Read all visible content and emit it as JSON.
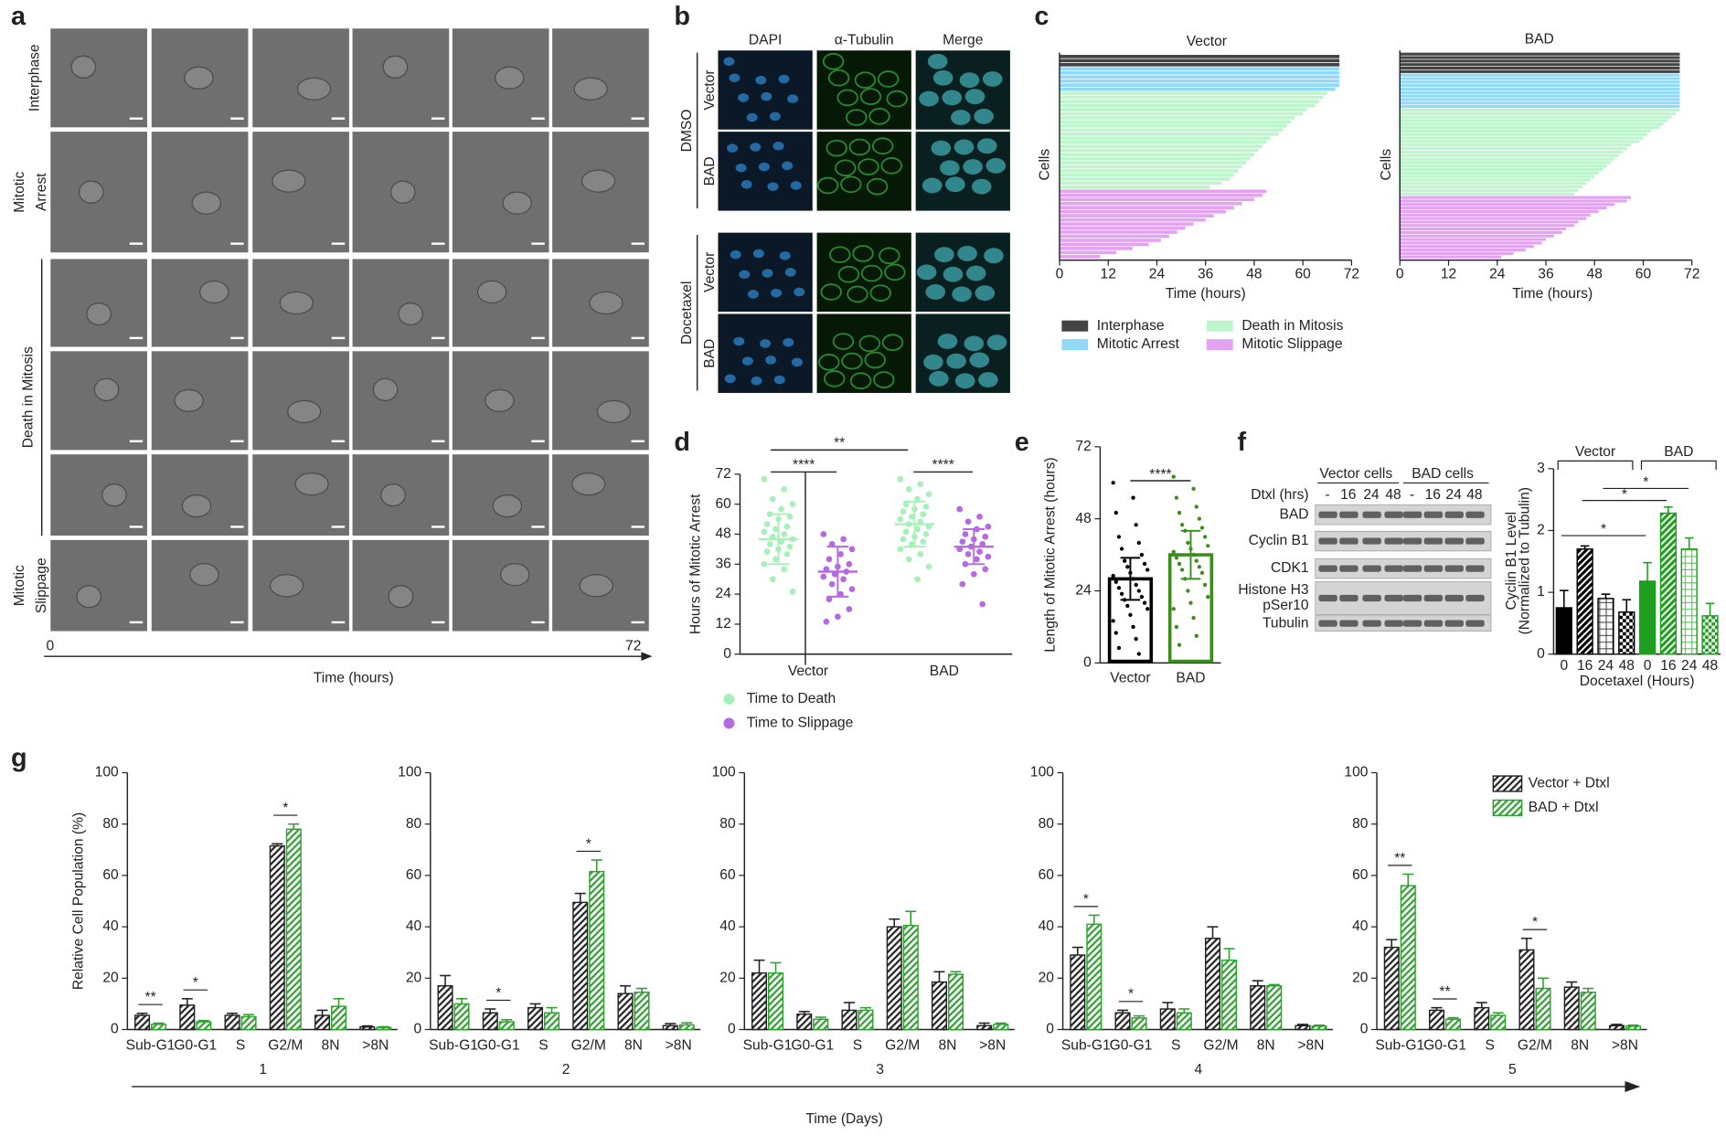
{
  "panel_labels": [
    "a",
    "b",
    "c",
    "d",
    "e",
    "f",
    "g"
  ],
  "panel_a": {
    "rows": [
      [
        "Interphase"
      ],
      [
        "Mitotic",
        "Arrest"
      ],
      [
        "Death in Mitosis"
      ],
      [
        "Mitotic",
        "Slippage"
      ]
    ],
    "time_start": "0",
    "time_end": "72",
    "time_label": "Time (hours)"
  },
  "panel_b": {
    "columns": [
      "DAPI",
      "α-Tubulin",
      "Merge"
    ],
    "treatments": [
      "DMSO",
      "Docetaxel"
    ],
    "cell_lines": [
      "Vector",
      "BAD"
    ]
  },
  "panel_f_blot": {
    "groups": [
      "Vector cells",
      "BAD cells"
    ],
    "lane_header": "Dtxl (hrs)",
    "lanes": [
      "-",
      "16",
      "24",
      "48",
      "-",
      "16",
      "24",
      "48"
    ],
    "proteins": [
      [
        "BAD"
      ],
      [
        "Cyclin B1"
      ],
      [
        "CDK1"
      ],
      [
        "Histone H3",
        "pSer10"
      ],
      [
        "Tubulin"
      ]
    ]
  },
  "chart_data": [
    {
      "type": "timeline",
      "title": "Vector",
      "ylabel": "Cells",
      "xlabel": "Time (hours)",
      "xlim": [
        0,
        72
      ],
      "xticks": [
        0,
        12,
        24,
        36,
        48,
        60,
        72
      ],
      "legend": "bottom",
      "series": [
        {
          "name": "Interphase",
          "color": "#444444",
          "values": [
            69,
            69,
            69
          ]
        },
        {
          "name": "Mitotic Arrest",
          "color": "#92d9f7",
          "values": [
            69,
            69,
            69,
            69,
            69,
            68
          ]
        },
        {
          "name": "Death in Mitosis",
          "color": "#bdf5cc",
          "values": [
            66,
            65,
            64,
            63,
            61,
            60,
            58,
            57,
            56,
            55,
            54,
            52,
            51,
            50,
            49,
            48,
            47,
            46,
            45,
            44,
            43,
            42,
            40,
            37
          ]
        },
        {
          "name": "Mitotic Slippage",
          "color": "#e3a3f2",
          "values": [
            51,
            50,
            48,
            45,
            43,
            41,
            38,
            36,
            33,
            31,
            29,
            27,
            25,
            22,
            18,
            14,
            10
          ]
        }
      ]
    },
    {
      "type": "timeline",
      "title": "BAD",
      "ylabel": "Cells",
      "xlabel": "Time (hours)",
      "xlim": [
        0,
        72
      ],
      "xticks": [
        0,
        12,
        24,
        36,
        48,
        60,
        72
      ],
      "series": [
        {
          "color": "#444444",
          "values": [
            69,
            69,
            69,
            69,
            69,
            69
          ]
        },
        {
          "color": "#92d9f7",
          "values": [
            69,
            69,
            69,
            69,
            69,
            69,
            69,
            69,
            69,
            69
          ]
        },
        {
          "color": "#bdf5cc",
          "values": [
            69,
            68,
            67,
            66,
            65,
            64,
            62,
            61,
            60,
            59,
            57,
            56,
            55,
            54,
            53,
            52,
            51,
            50,
            49,
            48,
            47,
            46,
            45,
            44,
            43
          ]
        },
        {
          "color": "#e3a3f2",
          "values": [
            57,
            56,
            53,
            51,
            49,
            47,
            46,
            44,
            43,
            41,
            40,
            38,
            36,
            35,
            33,
            31,
            28,
            25
          ]
        }
      ]
    },
    {
      "type": "dotplot",
      "ylabel": "Hours of Mitotic Arrest",
      "ylim": [
        0,
        72
      ],
      "yticks": [
        0,
        12,
        24,
        36,
        48,
        60,
        72
      ],
      "categories": [
        "Vector",
        "BAD"
      ],
      "series": [
        {
          "name": "Time to Death",
          "color": "#a8efb9",
          "values": [
            [
              70,
              66,
              62,
              60,
              58,
              56,
              55,
              54,
              52,
              51,
              50,
              49,
              48,
              47,
              46,
              45,
              44,
              43,
              42,
              41,
              40,
              38,
              36,
              34,
              30,
              25
            ],
            [
              70,
              68,
              66,
              64,
              62,
              60,
              59,
              58,
              57,
              56,
              55,
              54,
              53,
              52,
              51,
              50,
              49,
              48,
              47,
              46,
              45,
              44,
              42,
              40,
              38,
              35,
              30
            ]
          ],
          "mean": [
            46,
            52
          ],
          "sd": [
            10,
            9
          ]
        },
        {
          "name": "Time to Slippage",
          "color": "#b56be0",
          "values": [
            [
              48,
              46,
              44,
              42,
              40,
              38,
              36,
              35,
              34,
              33,
              32,
              31,
              30,
              28,
              26,
              24,
              22,
              18,
              15,
              13
            ],
            [
              58,
              55,
              53,
              51,
              50,
              48,
              47,
              46,
              45,
              44,
              43,
              42,
              41,
              40,
              39,
              38,
              36,
              34,
              32,
              28,
              20
            ]
          ],
          "mean": [
            33,
            43
          ],
          "sd": [
            10,
            7
          ]
        }
      ],
      "annotations": [
        "****",
        "****",
        "**"
      ]
    },
    {
      "type": "bar_dots",
      "ylabel": "Length of Mitotic Arrest (hours)",
      "ylim": [
        0,
        72
      ],
      "yticks": [
        0,
        24,
        48,
        72
      ],
      "categories": [
        "Vector",
        "BAD"
      ],
      "colors": [
        "#000000",
        "#3c8c1e"
      ],
      "values": [
        28,
        36
      ],
      "errors": [
        7,
        8
      ],
      "points": [
        [
          60,
          55,
          50,
          46,
          42,
          40,
          38,
          36,
          34,
          33,
          32,
          31,
          30,
          29,
          28,
          27,
          26,
          25,
          24,
          23,
          22,
          21,
          20,
          19,
          18,
          16,
          14,
          12,
          10,
          8,
          5,
          3
        ],
        [
          62,
          58,
          55,
          52,
          50,
          48,
          46,
          45,
          44,
          42,
          40,
          39,
          38,
          37,
          36,
          35,
          34,
          33,
          32,
          31,
          30,
          28,
          26,
          24,
          22,
          20,
          18,
          15,
          12,
          9,
          6
        ]
      ],
      "annotations": [
        "****"
      ]
    },
    {
      "type": "bar_patterns",
      "ylabel": [
        "Cyclin B1 Level",
        "(Normalized to Tubulin)"
      ],
      "xlabel": "Docetaxel (Hours)",
      "groups": [
        "Vector",
        "BAD"
      ],
      "ylim": [
        0,
        3
      ],
      "yticks": [
        0,
        1,
        2,
        3
      ],
      "categories": [
        "0",
        "16",
        "24",
        "48",
        "0",
        "16",
        "24",
        "48"
      ],
      "values": [
        0.75,
        1.7,
        0.9,
        0.68,
        1.18,
        2.28,
        1.7,
        0.62
      ],
      "errors": [
        0.28,
        0.05,
        0.07,
        0.2,
        0.3,
        0.1,
        0.18,
        0.2
      ],
      "colors": [
        "#000000",
        "#000000",
        "#000000",
        "#000000",
        "#1e9e1e",
        "#1e9e1e",
        "#1e9e1e",
        "#1e9e1e"
      ],
      "patterns": [
        "solid",
        "dense",
        "grid",
        "checker",
        "solid",
        "dense",
        "grid",
        "checker"
      ],
      "annotations": [
        "*",
        "*",
        "*"
      ]
    },
    {
      "type": "grouped_bar_days",
      "ylabel": "Relative Cell Population (%)",
      "xlabel": "Time (Days)",
      "ylim": [
        0,
        100
      ],
      "yticks": [
        0,
        20,
        40,
        60,
        80,
        100
      ],
      "categories": [
        "Sub-G1",
        "G0-G1",
        "S",
        "G2/M",
        "8N",
        ">8N"
      ],
      "legend": "top right",
      "series_names": [
        "Vector + Dtxl",
        "BAD + Dtxl"
      ],
      "colors": [
        "#222222",
        "#2ea02e"
      ],
      "days": [
        {
          "label": "1",
          "values": [
            [
              5.5,
              9.5,
              5.5,
              71.5,
              5.5,
              1
            ],
            [
              2,
              3,
              5,
              78,
              9,
              0.8
            ]
          ],
          "errors": [
            [
              0.8,
              2.5,
              0.8,
              0.8,
              2,
              0.4
            ],
            [
              0.5,
              0.5,
              0.8,
              2,
              3,
              0.3
            ]
          ],
          "annotations": [
            {
              "category": "Sub-G1",
              "text": "**"
            },
            {
              "category": "G0-G1",
              "text": "*"
            },
            {
              "category": "G2/M",
              "text": "*"
            }
          ]
        },
        {
          "label": "2",
          "values": [
            [
              17,
              6.5,
              8.5,
              49.5,
              14,
              1.5
            ],
            [
              10,
              3,
              6.5,
              61.5,
              14.5,
              1.8
            ]
          ],
          "errors": [
            [
              4,
              1.5,
              1.5,
              3.5,
              3,
              0.8
            ],
            [
              2,
              0.8,
              2,
              4.5,
              1.5,
              0.8
            ]
          ],
          "annotations": [
            {
              "category": "G0-G1",
              "text": "*"
            },
            {
              "category": "G2/M",
              "text": "*"
            }
          ]
        },
        {
          "label": "3",
          "values": [
            [
              22,
              6,
              7.5,
              40,
              18.5,
              1.5
            ],
            [
              22,
              4,
              7.5,
              40.5,
              21.5,
              2
            ]
          ],
          "errors": [
            [
              5,
              1,
              3,
              3,
              4,
              1
            ],
            [
              4,
              0.8,
              1,
              5.5,
              1,
              0.5
            ]
          ],
          "annotations": []
        },
        {
          "label": "4",
          "values": [
            [
              29,
              6.5,
              8,
              35.5,
              17,
              1.5
            ],
            [
              41,
              4.5,
              6.5,
              27,
              17,
              1.3
            ]
          ],
          "errors": [
            [
              3,
              1,
              2.5,
              4.5,
              2,
              0.5
            ],
            [
              3.5,
              0.8,
              1.5,
              4.5,
              0.5,
              0.4
            ]
          ],
          "annotations": [
            {
              "category": "Sub-G1",
              "text": "*"
            },
            {
              "category": "G0-G1",
              "text": "*"
            }
          ]
        },
        {
          "label": "5",
          "values": [
            [
              32,
              7.5,
              8.5,
              31,
              16.5,
              1.5
            ],
            [
              56,
              4,
              5.5,
              16,
              14.5,
              1.3
            ]
          ],
          "errors": [
            [
              3,
              1,
              2,
              4.5,
              2,
              0.5
            ],
            [
              4.5,
              0.6,
              1,
              4,
              1.5,
              0.4
            ]
          ],
          "annotations": [
            {
              "category": "Sub-G1",
              "text": "**"
            },
            {
              "category": "G0-G1",
              "text": "**"
            },
            {
              "category": "G2/M",
              "text": "*"
            }
          ]
        }
      ]
    }
  ]
}
